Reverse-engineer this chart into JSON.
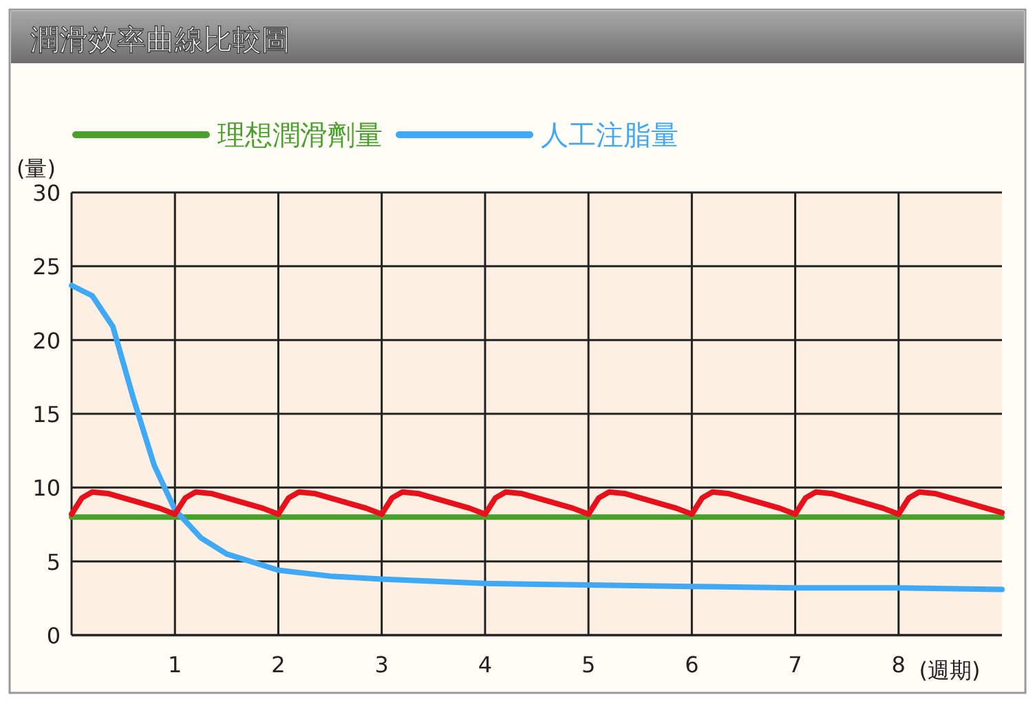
{
  "chart_data": {
    "type": "line",
    "title": "潤滑效率曲線比較圖",
    "xlabel": "(週期)",
    "ylabel": "(量)",
    "xlim": [
      0,
      9
    ],
    "xticks": [
      1,
      2,
      3,
      4,
      5,
      6,
      7,
      8
    ],
    "ylim": [
      0,
      30
    ],
    "yticks": [
      0,
      5,
      10,
      15,
      20,
      25,
      30
    ],
    "grid": true,
    "legend": "top",
    "marker": "none",
    "line_style": "solid",
    "series": [
      {
        "name": "理想潤滑劑量",
        "color": "#4aa02c",
        "x": [
          0,
          9
        ],
        "values": [
          8,
          8
        ]
      },
      {
        "name": "人工注脂量",
        "color": "#3fa9f5",
        "x": [
          0,
          0.2,
          0.4,
          0.6,
          0.8,
          1,
          1.25,
          1.5,
          2,
          2.5,
          3,
          4,
          5,
          6,
          7,
          8,
          9
        ],
        "values": [
          23.7,
          23,
          20.9,
          16,
          11.5,
          8.5,
          6.6,
          5.5,
          4.4,
          4,
          3.8,
          3.5,
          3.4,
          3.3,
          3.2,
          3.2,
          3.1
        ]
      },
      {
        "color": "#e8101a",
        "x": [
          0,
          0.1,
          0.2,
          0.35,
          0.6,
          0.85,
          1,
          1.1,
          1.2,
          1.35,
          1.6,
          1.85,
          2,
          2.1,
          2.2,
          2.35,
          2.6,
          2.85,
          3,
          3.1,
          3.2,
          3.35,
          3.6,
          3.85,
          4,
          4.1,
          4.2,
          4.35,
          4.6,
          4.85,
          5,
          5.1,
          5.2,
          5.35,
          5.6,
          5.85,
          6,
          6.1,
          6.2,
          6.35,
          6.6,
          6.85,
          7,
          7.1,
          7.2,
          7.35,
          7.6,
          7.85,
          8,
          8.1,
          8.2,
          8.35,
          8.6,
          8.85,
          9
        ],
        "values": [
          8.2,
          9.3,
          9.7,
          9.6,
          9.1,
          8.6,
          8.2,
          9.3,
          9.7,
          9.6,
          9.1,
          8.6,
          8.2,
          9.3,
          9.7,
          9.6,
          9.1,
          8.6,
          8.2,
          9.3,
          9.7,
          9.6,
          9.1,
          8.6,
          8.2,
          9.3,
          9.7,
          9.6,
          9.1,
          8.6,
          8.2,
          9.3,
          9.7,
          9.6,
          9.1,
          8.6,
          8.2,
          9.3,
          9.7,
          9.6,
          9.1,
          8.6,
          8.2,
          9.3,
          9.7,
          9.6,
          9.1,
          8.6,
          8.2,
          9.3,
          9.7,
          9.6,
          9.1,
          8.6,
          8.3
        ]
      }
    ]
  }
}
